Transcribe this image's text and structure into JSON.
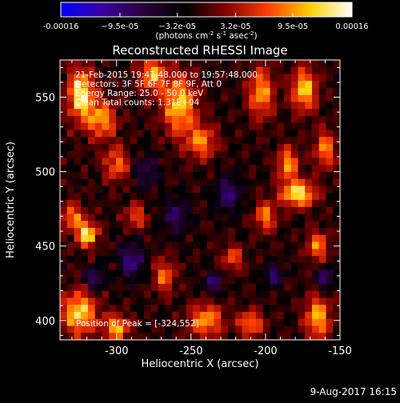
{
  "chart_data": {
    "type": "heatmap",
    "title": "Reconstructed RHESSI Image",
    "xlabel": "Heliocentric X (arcsec)",
    "ylabel": "Heliocentric Y (arcsec)",
    "xlim": [
      -338,
      -150
    ],
    "ylim": [
      387,
      575
    ],
    "xticks": [
      -300,
      -250,
      -200,
      -150
    ],
    "yticks": [
      400,
      450,
      500,
      550
    ],
    "colorbar": {
      "label_main": "(photons cm",
      "label_exp1": "-2",
      "label_mid": " s",
      "label_exp2": "-1",
      "label_end": " asec",
      "label_exp3": "-2",
      "label_close": ")",
      "min": -0.00016,
      "max": 0.00016,
      "tick_values": [
        -0.00016,
        -9.5e-05,
        -3.2e-05,
        3.2e-05,
        9.5e-05,
        0.00016
      ],
      "tick_labels": [
        "-0.00016",
        "−9.5e-05",
        "−3.2e-05",
        "3.2e-05",
        "9.5e-05",
        "0.00016"
      ],
      "colors": [
        "#0000ff",
        "#3a00a0",
        "#2a003a",
        "#000000",
        "#8a0000",
        "#ff4000",
        "#ffd000",
        "#ffffff"
      ]
    },
    "annotations": [
      "21-Feb-2015 19:47:48.000 to 19:57:48.000",
      "Detectors: 3F 5F 6F 7F 8F 9F, Att 0",
      "Energy Range: 25.0 - 50.0 keV",
      "Clean    Total counts: 1.31E+04"
    ],
    "peak_text": "Position of Peak = [-324,552]",
    "peak": [
      -324,
      552
    ],
    "grid_cols": 40,
    "grid_rows": 40,
    "hot_spots": [
      {
        "x": -324,
        "y": 552,
        "amp": 0.000155,
        "sx": 6,
        "sy": 12
      },
      {
        "x": -310,
        "y": 535,
        "amp": 0.00011,
        "sx": 7,
        "sy": 9
      },
      {
        "x": -276,
        "y": 565,
        "amp": 0.00012,
        "sx": 6,
        "sy": 8
      },
      {
        "x": -258,
        "y": 545,
        "amp": 0.00013,
        "sx": 8,
        "sy": 14
      },
      {
        "x": -243,
        "y": 520,
        "amp": 0.0001,
        "sx": 7,
        "sy": 8
      },
      {
        "x": -203,
        "y": 553,
        "amp": 0.00011,
        "sx": 6,
        "sy": 12
      },
      {
        "x": -174,
        "y": 555,
        "amp": 0.00013,
        "sx": 6,
        "sy": 10
      },
      {
        "x": -185,
        "y": 505,
        "amp": 0.00011,
        "sx": 5,
        "sy": 8
      },
      {
        "x": -178,
        "y": 485,
        "amp": 0.00015,
        "sx": 8,
        "sy": 6
      },
      {
        "x": -200,
        "y": 470,
        "amp": 0.0001,
        "sx": 5,
        "sy": 7
      },
      {
        "x": -160,
        "y": 515,
        "amp": 0.0001,
        "sx": 5,
        "sy": 9
      },
      {
        "x": -320,
        "y": 458,
        "amp": 0.00015,
        "sx": 5,
        "sy": 6
      },
      {
        "x": -330,
        "y": 470,
        "amp": 0.0001,
        "sx": 5,
        "sy": 6
      },
      {
        "x": -300,
        "y": 505,
        "amp": 9e-05,
        "sx": 6,
        "sy": 8
      },
      {
        "x": -325,
        "y": 405,
        "amp": 0.00014,
        "sx": 8,
        "sy": 10
      },
      {
        "x": -300,
        "y": 395,
        "amp": 0.00012,
        "sx": 6,
        "sy": 6
      },
      {
        "x": -240,
        "y": 400,
        "amp": 0.00011,
        "sx": 8,
        "sy": 8
      },
      {
        "x": -210,
        "y": 398,
        "amp": 0.0001,
        "sx": 6,
        "sy": 6
      },
      {
        "x": -165,
        "y": 402,
        "amp": 0.00012,
        "sx": 6,
        "sy": 10
      },
      {
        "x": -268,
        "y": 430,
        "amp": 9e-05,
        "sx": 5,
        "sy": 8
      },
      {
        "x": -165,
        "y": 450,
        "amp": 0.0001,
        "sx": 5,
        "sy": 7
      },
      {
        "x": -222,
        "y": 442,
        "amp": 8e-05,
        "sx": 5,
        "sy": 6
      },
      {
        "x": -287,
        "y": 470,
        "amp": 8e-05,
        "sx": 5,
        "sy": 6
      }
    ],
    "cold_spots": [
      {
        "x": -290,
        "y": 440,
        "amp": -9e-05,
        "sx": 6,
        "sy": 8
      },
      {
        "x": -225,
        "y": 485,
        "amp": -8e-05,
        "sx": 6,
        "sy": 8
      },
      {
        "x": -260,
        "y": 470,
        "amp": -7e-05,
        "sx": 6,
        "sy": 8
      },
      {
        "x": -315,
        "y": 428,
        "amp": -9e-05,
        "sx": 4,
        "sy": 5
      },
      {
        "x": -235,
        "y": 425,
        "amp": -8e-05,
        "sx": 4,
        "sy": 5
      },
      {
        "x": -195,
        "y": 430,
        "amp": -8e-05,
        "sx": 4,
        "sy": 5
      },
      {
        "x": -160,
        "y": 428,
        "amp": -9e-05,
        "sx": 4,
        "sy": 5
      },
      {
        "x": -280,
        "y": 500,
        "amp": -6e-05,
        "sx": 6,
        "sy": 8
      }
    ]
  },
  "footer": {
    "date": "9-Aug-2017 16:15"
  }
}
